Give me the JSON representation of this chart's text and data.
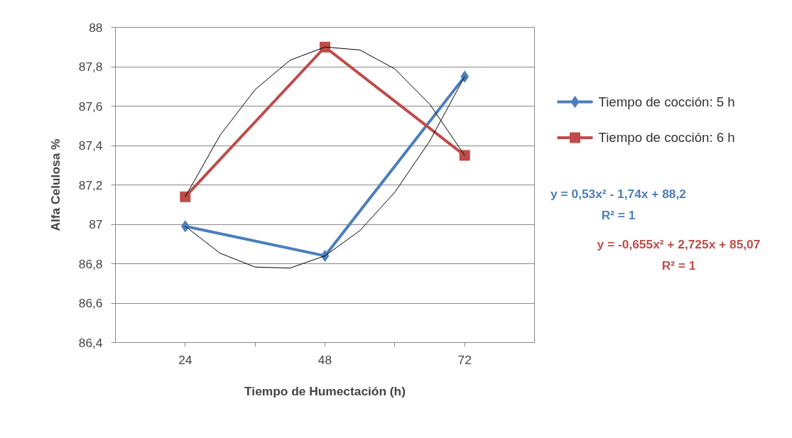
{
  "chart_data": {
    "type": "line",
    "xlabel": "Tiempo de Humectación (h)",
    "ylabel": "Alfa Celulosa %",
    "x": [
      24,
      48,
      72
    ],
    "xlim": [
      12,
      84
    ],
    "xticks": [
      24,
      {
        "value": 36,
        "label": null
      },
      48,
      {
        "value": 60,
        "label": null
      },
      72
    ],
    "ylim": [
      86.4,
      88
    ],
    "yticks": [
      {
        "value": 86.4,
        "label": "86,4"
      },
      {
        "value": 86.6,
        "label": "86,6"
      },
      {
        "value": 86.8,
        "label": "86,8"
      },
      87,
      {
        "value": 87.2,
        "label": "87,2"
      },
      {
        "value": 87.4,
        "label": "87,4"
      },
      {
        "value": 87.6,
        "label": "87,6"
      },
      {
        "value": 87.8,
        "label": "87,8"
      },
      88
    ],
    "grid": "y",
    "legend": "right",
    "series": [
      {
        "name": "Tiempo de cocción: 5 h",
        "color": "#4a7ebb",
        "marker": "diamond",
        "values": [
          86.99,
          86.84,
          87.75
        ]
      },
      {
        "name": "Tiempo de cocción: 6 h",
        "color": "#be4b48",
        "marker": "square",
        "values": [
          87.14,
          87.9,
          87.35
        ]
      },
      {
        "color": "#000000",
        "marker": "none",
        "x": [
          24,
          30,
          36,
          42,
          48,
          54,
          60,
          66,
          72
        ],
        "values": [
          86.99,
          86.853,
          86.783,
          86.778,
          86.84,
          86.968,
          87.163,
          87.423,
          87.75
        ]
      },
      {
        "color": "#000000",
        "marker": "none",
        "x": [
          24,
          30,
          36,
          42,
          48,
          54,
          60,
          66,
          72
        ],
        "values": [
          87.14,
          87.453,
          87.684,
          87.833,
          87.9,
          87.885,
          87.789,
          87.61,
          87.35
        ]
      }
    ],
    "annotations": [
      "y = 0,53x² - 1,74x + 88,2\nR² = 1",
      "y = -0,655x² + 2,725x + 85,07\nR² = 1"
    ]
  }
}
